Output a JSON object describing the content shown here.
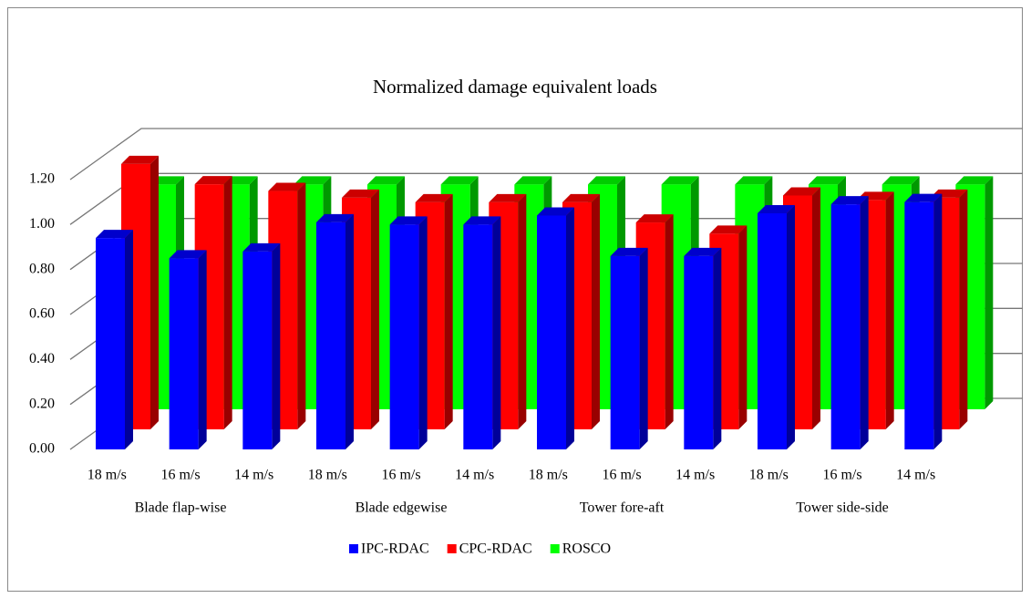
{
  "chart_data": {
    "type": "bar3d",
    "title": "Normalized damage equivalent loads",
    "categories": [
      "18 m/s",
      "16 m/s",
      "14 m/s",
      "18 m/s",
      "16 m/s",
      "14 m/s",
      "18 m/s",
      "16 m/s",
      "14 m/s",
      "18 m/s",
      "16 m/s",
      "14 m/s"
    ],
    "groups": [
      "Blade flap-wise",
      "Blade edgewise",
      "Tower fore-aft",
      "Tower side-side"
    ],
    "series": [
      {
        "name": "IPC-RDAC",
        "color": "#0000ff",
        "values": [
          0.94,
          0.85,
          0.88,
          1.01,
          1.0,
          1.0,
          1.04,
          0.86,
          0.86,
          1.05,
          1.09,
          1.1
        ]
      },
      {
        "name": "CPC-RDAC",
        "color": "#ff0000",
        "values": [
          1.18,
          1.09,
          1.06,
          1.03,
          1.01,
          1.01,
          1.01,
          0.92,
          0.87,
          1.04,
          1.02,
          1.03
        ]
      },
      {
        "name": "ROSCO",
        "color": "#00ff00",
        "values": [
          1.0,
          1.0,
          1.0,
          1.0,
          1.0,
          1.0,
          1.0,
          1.0,
          1.0,
          1.0,
          1.0,
          1.0
        ]
      }
    ],
    "ylim": [
      0,
      1.2
    ],
    "yticks": [
      {
        "value": 0,
        "label": "0.00"
      },
      {
        "value": 0.2,
        "label": "0.20"
      },
      {
        "value": 0.4,
        "label": "0.40"
      },
      {
        "value": 0.6,
        "label": "0.60"
      },
      {
        "value": 0.8,
        "label": "0.80"
      },
      {
        "value": 1.0,
        "label": "1.00"
      },
      {
        "value": 1.2,
        "label": "1.20"
      }
    ],
    "grid": true,
    "legend": "bottom"
  }
}
